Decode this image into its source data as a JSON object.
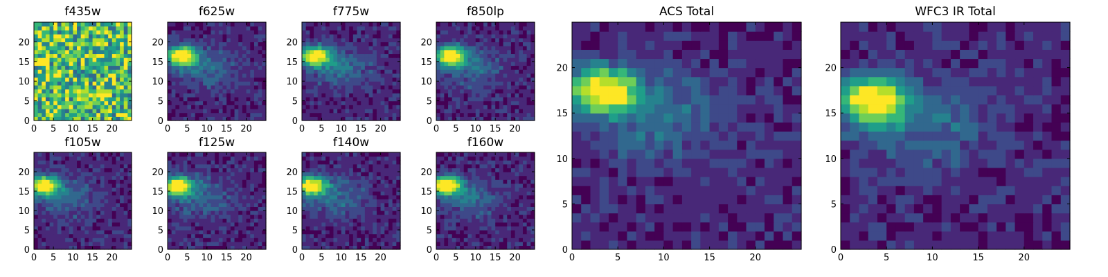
{
  "chart_data": [
    {
      "type": "heatmap",
      "title": "f435w",
      "pattern": "noise",
      "grid": false,
      "xlim": [
        0,
        25
      ],
      "ylim": [
        0,
        25
      ],
      "xticks": [
        "0",
        "5",
        "10",
        "15",
        "20"
      ],
      "yticks": [
        "0",
        "5",
        "10",
        "15",
        "20"
      ]
    },
    {
      "type": "heatmap",
      "title": "f625w",
      "pattern": "source",
      "peak": [
        3,
        16
      ],
      "grid": false,
      "xlim": [
        0,
        25
      ],
      "ylim": [
        0,
        25
      ],
      "xticks": [
        "0",
        "5",
        "10",
        "15",
        "20"
      ],
      "yticks": [
        "0",
        "5",
        "10",
        "15",
        "20"
      ]
    },
    {
      "type": "heatmap",
      "title": "f775w",
      "pattern": "source",
      "peak": [
        3,
        16
      ],
      "grid": false,
      "xlim": [
        0,
        25
      ],
      "ylim": [
        0,
        25
      ],
      "xticks": [
        "0",
        "5",
        "10",
        "15",
        "20"
      ],
      "yticks": [
        "0",
        "5",
        "10",
        "15",
        "20"
      ]
    },
    {
      "type": "heatmap",
      "title": "f850lp",
      "pattern": "source",
      "peak": [
        3,
        16
      ],
      "grid": false,
      "xlim": [
        0,
        25
      ],
      "ylim": [
        0,
        25
      ],
      "xticks": [
        "0",
        "5",
        "10",
        "15",
        "20"
      ],
      "yticks": [
        "0",
        "5",
        "10",
        "15",
        "20"
      ]
    },
    {
      "type": "heatmap",
      "title": "f105w",
      "pattern": "source",
      "peak": [
        2,
        16
      ],
      "grid": false,
      "xlim": [
        0,
        25
      ],
      "ylim": [
        0,
        25
      ],
      "xticks": [
        "0",
        "5",
        "10",
        "15",
        "20"
      ],
      "yticks": [
        "0",
        "5",
        "10",
        "15",
        "20"
      ]
    },
    {
      "type": "heatmap",
      "title": "f125w",
      "pattern": "source",
      "peak": [
        2,
        16
      ],
      "grid": false,
      "xlim": [
        0,
        25
      ],
      "ylim": [
        0,
        25
      ],
      "xticks": [
        "0",
        "5",
        "10",
        "15",
        "20"
      ],
      "yticks": [
        "0",
        "5",
        "10",
        "15",
        "20"
      ]
    },
    {
      "type": "heatmap",
      "title": "f140w",
      "pattern": "source",
      "peak": [
        2,
        16
      ],
      "grid": false,
      "xlim": [
        0,
        25
      ],
      "ylim": [
        0,
        25
      ],
      "xticks": [
        "0",
        "5",
        "10",
        "15",
        "20"
      ],
      "yticks": [
        "0",
        "5",
        "10",
        "15",
        "20"
      ]
    },
    {
      "type": "heatmap",
      "title": "f160w",
      "pattern": "source",
      "peak": [
        2,
        16
      ],
      "grid": false,
      "xlim": [
        0,
        25
      ],
      "ylim": [
        0,
        25
      ],
      "xticks": [
        "0",
        "5",
        "10",
        "15",
        "20"
      ],
      "yticks": [
        "0",
        "5",
        "10",
        "15",
        "20"
      ]
    },
    {
      "type": "heatmap",
      "title": "ACS Total",
      "pattern": "source",
      "peak": [
        3,
        17
      ],
      "grid": false,
      "xlim": [
        0,
        25
      ],
      "ylim": [
        0,
        25
      ],
      "xticks": [
        "0",
        "5",
        "10",
        "15",
        "20"
      ],
      "yticks": [
        "0",
        "5",
        "10",
        "15",
        "20"
      ]
    },
    {
      "type": "heatmap",
      "title": "WFC3 IR Total",
      "pattern": "source",
      "peak": [
        3,
        16
      ],
      "grid": false,
      "xlim": [
        0,
        25
      ],
      "ylim": [
        0,
        25
      ],
      "xticks": [
        "0",
        "5",
        "10",
        "15",
        "20"
      ],
      "yticks": [
        "0",
        "5",
        "10",
        "15",
        "20"
      ]
    }
  ],
  "colors": {
    "colormap": "viridis",
    "viridis": [
      "#440154",
      "#482878",
      "#3e4989",
      "#31688e",
      "#26828e",
      "#1f9e89",
      "#35b779",
      "#6ece58",
      "#b5de2b",
      "#fde725"
    ],
    "axis": "#000000"
  }
}
